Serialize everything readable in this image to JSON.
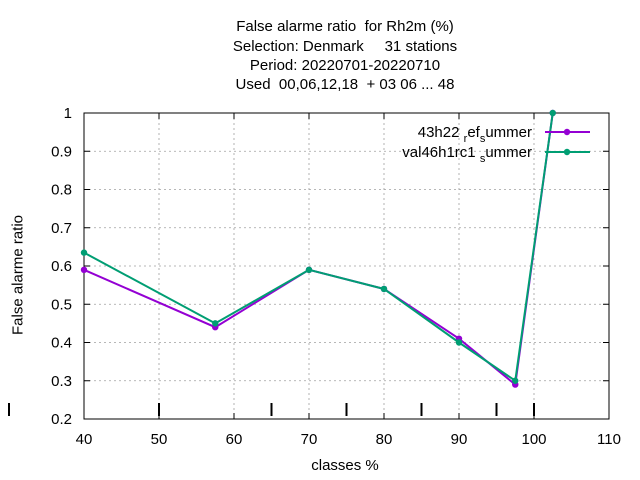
{
  "chart_data": {
    "type": "line",
    "title_lines": [
      "False alarme ratio  for Rh2m (%)",
      "Selection: Denmark     31 stations",
      "Period: 20220701-20220710",
      "Used  00,06,12,18  + 03 06 ... 48"
    ],
    "xlabel": "classes %",
    "ylabel": "False alarme ratio",
    "xlim": [
      40,
      110
    ],
    "ylim": [
      0.2,
      1.0
    ],
    "xticks": [
      40,
      50,
      60,
      70,
      80,
      90,
      100,
      110
    ],
    "yticks": [
      0.2,
      0.3,
      0.4,
      0.5,
      0.6,
      0.7,
      0.8,
      0.9,
      1.0
    ],
    "ytick_labels": [
      "0.2",
      "0.3",
      "0.4",
      "0.5",
      "0.6",
      "0.7",
      "0.8",
      "0.9",
      "1"
    ],
    "class_marks": [
      40,
      50,
      65,
      75,
      85,
      95,
      100
    ],
    "grid": true,
    "legend_position": "top-right",
    "series": [
      {
        "name": "43h22 ref_summer",
        "legend": {
          "a": "43h22 ",
          "sub1": "r",
          "b": "ef",
          "sub2": "s",
          "c": "ummer"
        },
        "color": "#9400d3",
        "x": [
          40,
          57.5,
          70,
          80,
          90,
          97.5,
          102.5
        ],
        "y": [
          0.59,
          0.44,
          0.59,
          0.54,
          0.41,
          0.29,
          1.0
        ]
      },
      {
        "name": "val46h1rc1_summer",
        "legend": {
          "a": "val46h1rc1 ",
          "sub1": "s",
          "b": "ummer",
          "sub2": "",
          "c": ""
        },
        "color": "#009e73",
        "x": [
          40,
          57.5,
          70,
          80,
          90,
          97.5,
          102.5
        ],
        "y": [
          0.635,
          0.45,
          0.59,
          0.54,
          0.4,
          0.3,
          1.0
        ]
      }
    ]
  }
}
